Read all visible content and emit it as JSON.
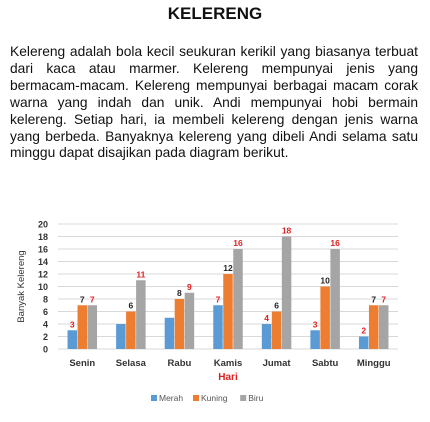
{
  "heading": "KELERENG",
  "paragraph": "Kelereng adalah bola kecil seukuran kerikil yang biasanya terbuat dari kaca atau marmer. Kelereng mempunyai jenis yang bermacam-macam. Kelereng mempunyai berbagai macam corak warna yang indah dan unik. Andi mempunyai hobi bermain kelereng. Setiap hari, ia membeli kelereng dengan jenis warna yang berbeda. Banyaknya kelereng yang dibeli Andi selama satu minggu dapat disajikan pada diagram berikut.",
  "chart_data": {
    "type": "bar",
    "categories": [
      "Senin",
      "Selasa",
      "Rabu",
      "Kamis",
      "Jumat",
      "Sabtu",
      "Minggu"
    ],
    "series": [
      {
        "name": "Merah",
        "values": [
          3,
          4,
          5,
          7,
          4,
          3,
          2
        ],
        "color": "#5B9BD5"
      },
      {
        "name": "Kuning",
        "values": [
          7,
          6,
          8,
          12,
          6,
          10,
          7
        ],
        "color": "#ED7D31"
      },
      {
        "name": "Biru",
        "values": [
          7,
          11,
          9,
          16,
          18,
          16,
          7
        ],
        "color": "#A5A5A5"
      }
    ],
    "data_labels": [
      [
        {
          "value": "3",
          "color": "red"
        },
        {
          "value": "7",
          "color": "black"
        },
        {
          "value": "7",
          "color": "red"
        }
      ],
      [
        {
          "value": "",
          "color": ""
        },
        {
          "value": "6",
          "color": "black"
        },
        {
          "value": "11",
          "color": "red"
        }
      ],
      [
        {
          "value": "",
          "color": ""
        },
        {
          "value": "8",
          "color": "black"
        },
        {
          "value": "9",
          "color": "red"
        }
      ],
      [
        {
          "value": "7",
          "color": "red"
        },
        {
          "value": "12",
          "color": "black"
        },
        {
          "value": "16",
          "color": "red"
        }
      ],
      [
        {
          "value": "4",
          "color": "red"
        },
        {
          "value": "6",
          "color": "black"
        },
        {
          "value": "18",
          "color": "red"
        }
      ],
      [
        {
          "value": "3",
          "color": "red"
        },
        {
          "value": "10",
          "color": "black"
        },
        {
          "value": "16",
          "color": "red"
        }
      ],
      [
        {
          "value": "2",
          "color": "red"
        },
        {
          "value": "7",
          "color": "black"
        },
        {
          "value": "7",
          "color": "red"
        }
      ]
    ],
    "yticks": [
      "0",
      "2",
      "4",
      "6",
      "8",
      "10",
      "12",
      "14",
      "16",
      "18",
      "20"
    ],
    "ylim": [
      0,
      20
    ],
    "xlabel": "Hari",
    "ylabel": "Banyak Kelereng",
    "legend_position": "bottom",
    "grid": true,
    "label_red": "#E02020",
    "label_black": "#222222",
    "xlabel_color": "#E02020"
  }
}
